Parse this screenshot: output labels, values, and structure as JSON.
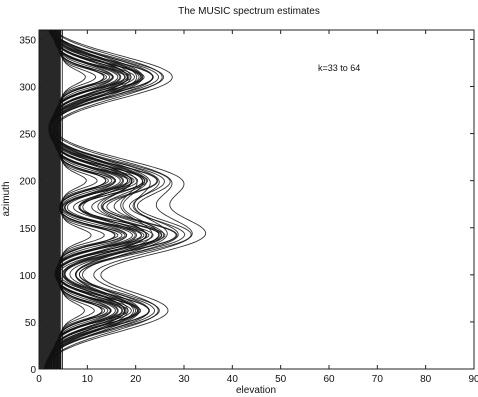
{
  "chart_data": {
    "type": "contour",
    "title": "The MUSIC spectrum estimates",
    "xlabel": "elevation",
    "ylabel": "azimuth",
    "xlim": [
      0,
      90
    ],
    "ylim": [
      0,
      360
    ],
    "xticks": [
      "0",
      "10",
      "20",
      "30",
      "40",
      "50",
      "60",
      "70",
      "80",
      "90"
    ],
    "yticks": [
      "0",
      "50",
      "100",
      "150",
      "200",
      "250",
      "300",
      "350"
    ],
    "annotation": "k=33 to 64",
    "grid": false,
    "peaks": [
      {
        "azimuth": 62,
        "elevation": 28
      },
      {
        "azimuth": 142,
        "elevation": 35
      },
      {
        "azimuth": 200,
        "elevation": 30
      },
      {
        "azimuth": 310,
        "elevation": 29
      }
    ],
    "color": "#111111"
  }
}
